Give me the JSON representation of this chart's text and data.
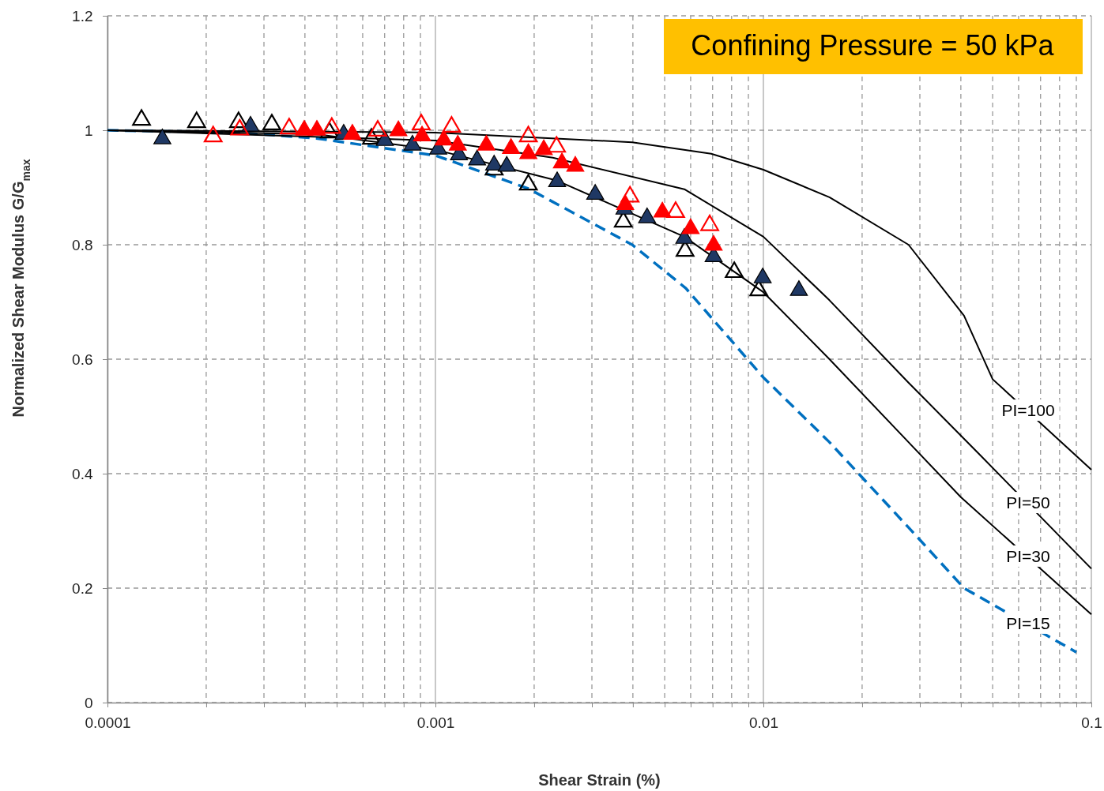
{
  "chart_data": {
    "type": "scatter",
    "title": "Confining Pressure = 50 kPa",
    "xlabel": "Shear Strain (%)",
    "ylabel": "Normalized Shear Modulus G/G$_{max}$",
    "log": "x",
    "grid": true,
    "xlim": [
      0.0001,
      0.1
    ],
    "ylim": [
      0,
      1.2
    ],
    "xticks": [
      0.0001,
      {
        "value": 0.0002,
        "label": null
      },
      {
        "value": 0.0003,
        "label": null
      },
      {
        "value": 0.0004,
        "label": null
      },
      {
        "value": 0.0005,
        "label": null
      },
      {
        "value": 0.0006,
        "label": null
      },
      {
        "value": 0.0007,
        "label": null
      },
      {
        "value": 0.0008,
        "label": null
      },
      {
        "value": 0.0009,
        "label": null
      },
      0.001,
      {
        "value": 0.002,
        "label": null
      },
      {
        "value": 0.003,
        "label": null
      },
      {
        "value": 0.004,
        "label": null
      },
      {
        "value": 0.005,
        "label": null
      },
      {
        "value": 0.006,
        "label": null
      },
      {
        "value": 0.007,
        "label": null
      },
      {
        "value": 0.008,
        "label": null
      },
      {
        "value": 0.009,
        "label": null
      },
      0.01,
      {
        "value": 0.02,
        "label": null
      },
      {
        "value": 0.03,
        "label": null
      },
      {
        "value": 0.04,
        "label": null
      },
      {
        "value": 0.05,
        "label": null
      },
      {
        "value": 0.06,
        "label": null
      },
      {
        "value": 0.07,
        "label": null
      },
      {
        "value": 0.08,
        "label": null
      },
      {
        "value": 0.09,
        "label": null
      },
      0.1
    ],
    "yticks": [
      0,
      0.2,
      0.4,
      0.6,
      0.8,
      1,
      1.2
    ],
    "series": [
      {
        "type": "line",
        "name": "PI=15",
        "color": "#0070c0",
        "line_style": "dashed",
        "x": [
          0.0001,
          0.000248,
          0.000433,
          0.001,
          0.00192,
          0.00398,
          0.0058,
          0.01,
          0.0159,
          0.0277,
          0.0409,
          0.09
        ],
        "values": [
          1,
          0.996,
          0.986,
          0.956,
          0.898,
          0.8,
          0.724,
          0.568,
          0.455,
          0.306,
          0.2,
          0.088
        ]
      },
      {
        "type": "line",
        "name": "PI=30",
        "color": "#000000",
        "line_style": "solid",
        "x": [
          0.0001,
          0.000433,
          0.001,
          0.00235,
          0.00574,
          0.01,
          0.0159,
          0.0277,
          0.04,
          0.1
        ],
        "values": [
          1,
          0.993,
          0.966,
          0.912,
          0.814,
          0.717,
          0.6,
          0.455,
          0.359,
          0.154
        ]
      },
      {
        "type": "line",
        "name": "PI=50",
        "color": "#000000",
        "line_style": "solid",
        "x": [
          0.0001,
          0.001,
          0.00228,
          0.00574,
          0.01,
          0.0159,
          0.0277,
          0.045,
          0.1
        ],
        "values": [
          1,
          0.982,
          0.952,
          0.897,
          0.814,
          0.703,
          0.559,
          0.437,
          0.234
        ]
      },
      {
        "type": "line",
        "name": "PI=100",
        "color": "#000000",
        "line_style": "solid",
        "x": [
          0.0001,
          0.001,
          0.00398,
          0.00693,
          0.01,
          0.0159,
          0.0277,
          0.0409,
          0.05,
          0.1
        ],
        "values": [
          1,
          0.996,
          0.979,
          0.959,
          0.931,
          0.883,
          0.8,
          0.676,
          0.565,
          0.407
        ]
      },
      {
        "type": "scatter",
        "marker": "triangle",
        "color": "#000000",
        "x": [
          0.000127,
          0.000187,
          0.000251,
          0.000317,
          0.000475,
          0.000638,
          0.00151,
          0.00192,
          0.00374,
          0.00577,
          0.00815,
          0.00968
        ],
        "values": [
          1.018,
          1.014,
          1.014,
          1.01,
          0.996,
          0.985,
          0.931,
          0.905,
          0.84,
          0.789,
          0.752,
          0.72
        ]
      },
      {
        "type": "scatter",
        "marker": "triangle",
        "color": "#1f3864",
        "x": [
          0.000147,
          0.000273,
          0.000525,
          0.000701,
          0.000851,
          0.00102,
          0.00118,
          0.00134,
          0.00151,
          0.00165,
          0.00235,
          0.00307,
          0.00377,
          0.00442,
          0.00574,
          0.00705,
          0.00995,
          0.01283
        ],
        "values": [
          0.985,
          1.007,
          0.993,
          0.982,
          0.974,
          0.967,
          0.957,
          0.948,
          0.939,
          0.937,
          0.91,
          0.888,
          0.862,
          0.847,
          0.811,
          0.779,
          0.742,
          0.72
        ]
      },
      {
        "type": "scatter",
        "marker": "triangle",
        "color": "#ff0000",
        "x": [
          0.00021,
          0.000253,
          0.000358,
          0.000483,
          0.000667,
          0.000905,
          0.00112,
          0.00192,
          0.00234,
          0.00392,
          0.0054,
          0.00686
        ],
        "values": [
          0.989,
          1.001,
          1.003,
          1.004,
          0.999,
          1.01,
          1.006,
          0.989,
          0.971,
          0.884,
          0.857,
          0.834
        ]
      },
      {
        "type": "scatter",
        "marker": "triangle",
        "color": "#ff0000",
        "x": [
          0.000398,
          0.000435,
          0.000558,
          0.000771,
          0.00091,
          0.00106,
          0.00117,
          0.00143,
          0.0017,
          0.00192,
          0.00214,
          0.00243,
          0.00267,
          0.00379,
          0.00492,
          0.006,
          0.00705
        ],
        "values": [
          1,
          1,
          0.993,
          0.999,
          0.99,
          0.983,
          0.974,
          0.974,
          0.968,
          0.959,
          0.966,
          0.943,
          0.937,
          0.87,
          0.857,
          0.828,
          0.799
        ]
      }
    ]
  }
}
